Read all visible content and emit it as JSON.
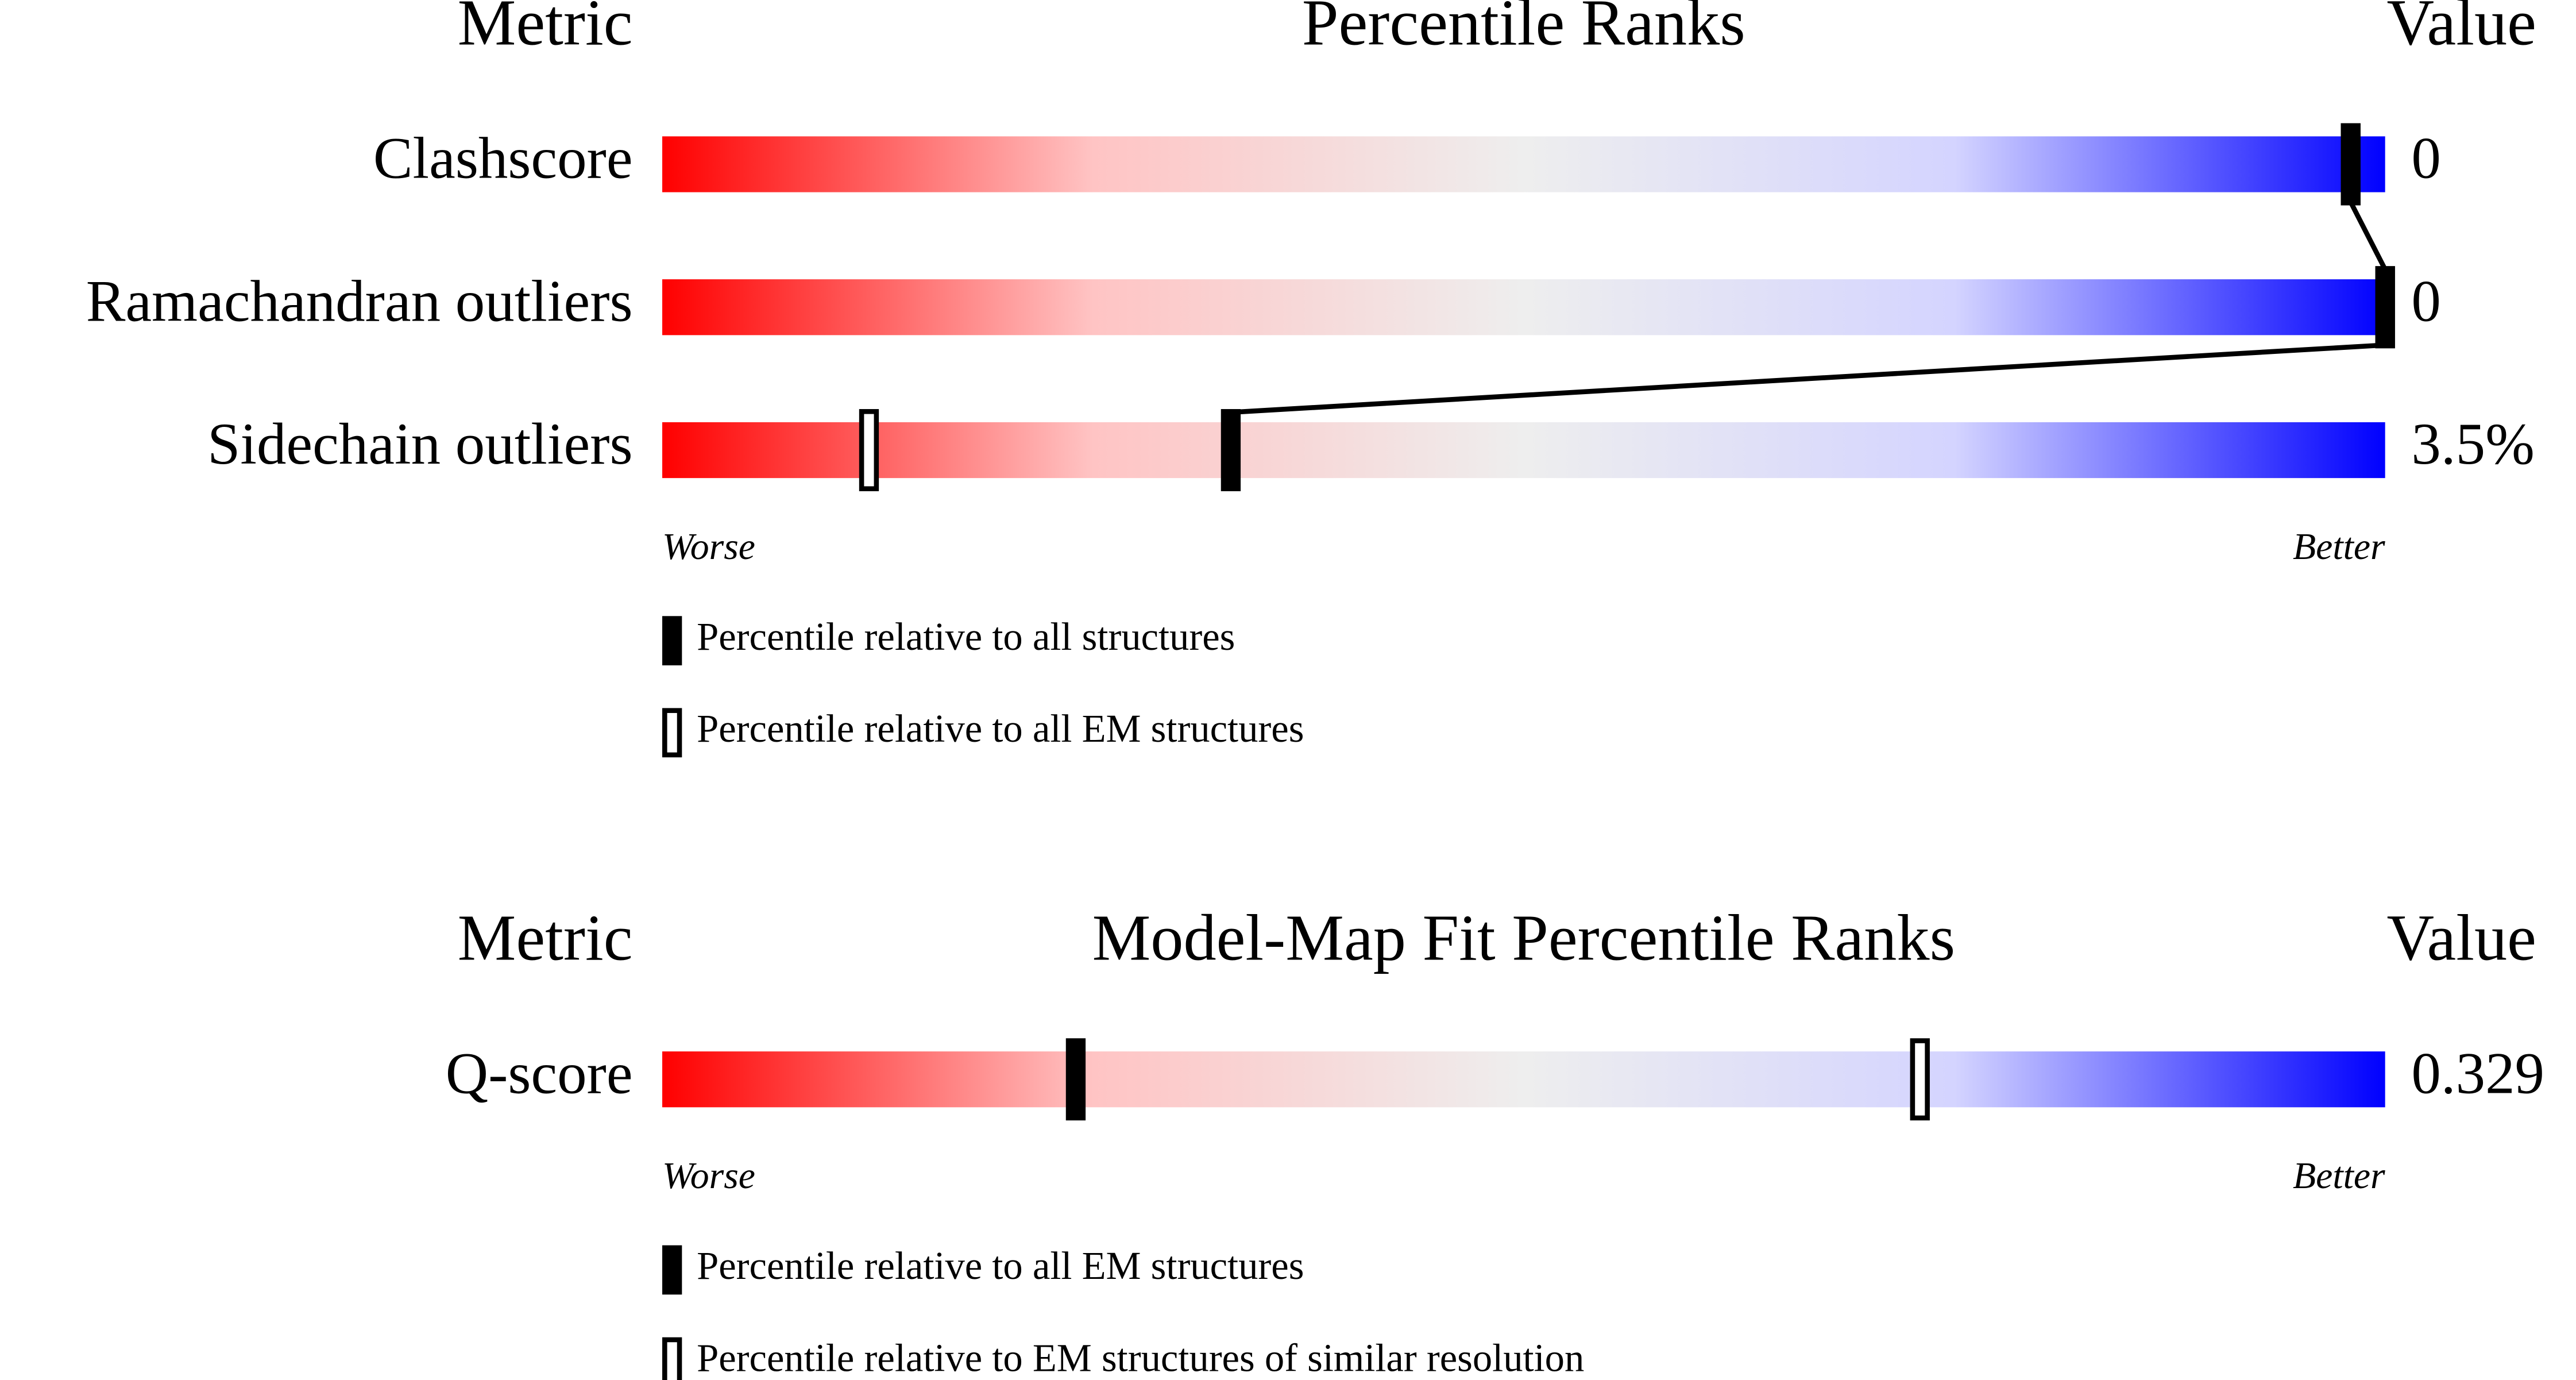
{
  "chart_data": [
    {
      "type": "percentile",
      "metric_header": "Metric",
      "title": "Percentile Ranks",
      "value_header": "Value",
      "categories": [
        "Clashscore",
        "Ramachandran outliers",
        "Sidechain outliers"
      ],
      "metric_values": [
        "0",
        "0",
        "3.5%"
      ],
      "series": [
        {
          "name": "Percentile relative to all structures",
          "style": "filled",
          "color": "#000000",
          "values": [
            98,
            100,
            33
          ]
        },
        {
          "name": "Percentile relative to all EM structures",
          "style": "open",
          "color": "#000000",
          "values": [
            98,
            100,
            12
          ]
        }
      ],
      "xlim": [
        0,
        100
      ],
      "low_label": "Worse",
      "high_label": "Better",
      "connect_filled": true,
      "gradient": [
        "#ff0000",
        "#ffc4c4",
        "#eeeeee",
        "#d4d4ff",
        "#0000ff"
      ]
    },
    {
      "type": "percentile",
      "metric_header": "Metric",
      "title": "Model-Map Fit Percentile Ranks",
      "value_header": "Value",
      "categories": [
        "Q-score"
      ],
      "metric_values": [
        "0.329"
      ],
      "series": [
        {
          "name": "Percentile relative to all EM structures",
          "style": "filled",
          "color": "#000000",
          "values": [
            24
          ]
        },
        {
          "name": "Percentile relative to EM structures of similar resolution",
          "style": "open",
          "color": "#000000",
          "values": [
            73
          ]
        }
      ],
      "xlim": [
        0,
        100
      ],
      "low_label": "Worse",
      "high_label": "Better",
      "connect_filled": true,
      "gradient": [
        "#ff0000",
        "#ffc4c4",
        "#eeeeee",
        "#d4d4ff",
        "#0000ff"
      ]
    }
  ]
}
